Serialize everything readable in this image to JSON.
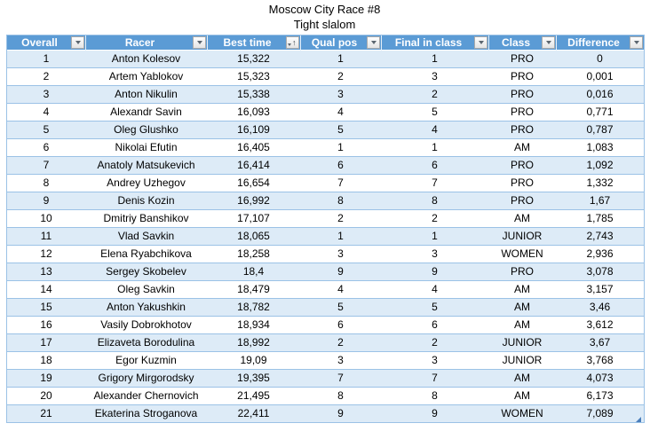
{
  "header": {
    "title": "Moscow City Race #8",
    "subtitle": "Tight slalom"
  },
  "table": {
    "columns": [
      {
        "key": "overall",
        "label": "Overall",
        "sort": "none"
      },
      {
        "key": "racer",
        "label": "Racer",
        "sort": "none"
      },
      {
        "key": "best-time",
        "label": "Best time",
        "sort": "ascending"
      },
      {
        "key": "qual-pos",
        "label": "Qual pos",
        "sort": "none"
      },
      {
        "key": "final-in-class",
        "label": "Final in class",
        "sort": "none"
      },
      {
        "key": "class",
        "label": "Class",
        "sort": "none"
      },
      {
        "key": "difference",
        "label": "Difference",
        "sort": "none"
      }
    ],
    "rows": [
      [
        "1",
        "Anton Kolesov",
        "15,322",
        "1",
        "1",
        "PRO",
        "0"
      ],
      [
        "2",
        "Artem Yablokov",
        "15,323",
        "2",
        "3",
        "PRO",
        "0,001"
      ],
      [
        "3",
        "Anton Nikulin",
        "15,338",
        "3",
        "2",
        "PRO",
        "0,016"
      ],
      [
        "4",
        "Alexandr Savin",
        "16,093",
        "4",
        "5",
        "PRO",
        "0,771"
      ],
      [
        "5",
        "Oleg Glushko",
        "16,109",
        "5",
        "4",
        "PRO",
        "0,787"
      ],
      [
        "6",
        "Nikolai Efutin",
        "16,405",
        "1",
        "1",
        "AM",
        "1,083"
      ],
      [
        "7",
        "Anatoly Matsukevich",
        "16,414",
        "6",
        "6",
        "PRO",
        "1,092"
      ],
      [
        "8",
        "Andrey Uzhegov",
        "16,654",
        "7",
        "7",
        "PRO",
        "1,332"
      ],
      [
        "9",
        "Denis Kozin",
        "16,992",
        "8",
        "8",
        "PRO",
        "1,67"
      ],
      [
        "10",
        "Dmitriy Banshikov",
        "17,107",
        "2",
        "2",
        "AM",
        "1,785"
      ],
      [
        "11",
        "Vlad Savkin",
        "18,065",
        "1",
        "1",
        "JUNIOR",
        "2,743"
      ],
      [
        "12",
        "Elena Ryabchikova",
        "18,258",
        "3",
        "3",
        "WOMEN",
        "2,936"
      ],
      [
        "13",
        "Sergey Skobelev",
        "18,4",
        "9",
        "9",
        "PRO",
        "3,078"
      ],
      [
        "14",
        "Oleg Savkin",
        "18,479",
        "4",
        "4",
        "AM",
        "3,157"
      ],
      [
        "15",
        "Anton Yakushkin",
        "18,782",
        "5",
        "5",
        "AM",
        "3,46"
      ],
      [
        "16",
        "Vasily Dobrokhotov",
        "18,934",
        "6",
        "6",
        "AM",
        "3,612"
      ],
      [
        "17",
        "Elizaveta Borodulina",
        "18,992",
        "2",
        "2",
        "JUNIOR",
        "3,67"
      ],
      [
        "18",
        "Egor Kuzmin",
        "19,09",
        "3",
        "3",
        "JUNIOR",
        "3,768"
      ],
      [
        "19",
        "Grigory Mirgorodsky",
        "19,395",
        "7",
        "7",
        "AM",
        "4,073"
      ],
      [
        "20",
        "Alexander Chernovich",
        "21,495",
        "8",
        "8",
        "AM",
        "6,173"
      ],
      [
        "21",
        "Ekaterina Stroganova",
        "22,411",
        "9",
        "9",
        "WOMEN",
        "7,089"
      ]
    ]
  },
  "icons": {
    "filter_dropdown": "chevron-down",
    "sort_ascending": "↑"
  },
  "colors": {
    "header_bg": "#5B9BD5",
    "header_text": "#FFFFFF",
    "band_row_bg": "#DDEBF7",
    "row_border": "#9BC2E6",
    "cell_text": "#000000",
    "resize_handle": "#4A7EBB"
  }
}
